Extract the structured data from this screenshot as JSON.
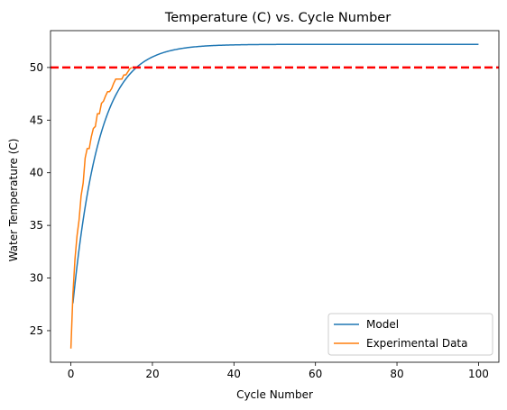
{
  "chart_data": {
    "type": "line",
    "title": "Temperature (C) vs. Cycle Number",
    "xlabel": "Cycle Number",
    "ylabel": "Water Temperature (C)",
    "xlim": [
      -5,
      105
    ],
    "ylim": [
      22,
      53.5
    ],
    "xticks": [
      0,
      20,
      40,
      60,
      80,
      100
    ],
    "yticks": [
      25,
      30,
      35,
      40,
      45,
      50
    ],
    "grid": false,
    "legend_position": "lower-right",
    "threshold": {
      "y": 50,
      "color": "#ff0000",
      "style": "dashed"
    },
    "series": [
      {
        "name": "Model",
        "color": "#1f77b4",
        "model": {
          "type": "exponential-approach",
          "start": 27.6,
          "asymptote": 52.2,
          "rate": 0.155,
          "x_start": 0.5,
          "x_end": 100
        }
      },
      {
        "name": "Experimental Data",
        "color": "#ff7f0e",
        "x": [
          0,
          0.5,
          1,
          1.5,
          2,
          2.5,
          3,
          3.5,
          4,
          4.5,
          5,
          5.5,
          6,
          6.5,
          7,
          7.5,
          8,
          8.5,
          9,
          9.5,
          10,
          10.5,
          11,
          11.5,
          12,
          12.5,
          13,
          13.5,
          14,
          14.5,
          15
        ],
        "y": [
          23.3,
          28.5,
          31.8,
          34.0,
          35.5,
          37.8,
          39.0,
          41.4,
          42.3,
          42.3,
          43.4,
          44.2,
          44.4,
          45.6,
          45.6,
          46.6,
          46.8,
          47.3,
          47.7,
          47.7,
          48.0,
          48.5,
          48.9,
          48.9,
          48.9,
          48.9,
          49.3,
          49.3,
          49.6,
          49.9,
          50.0
        ]
      }
    ]
  }
}
